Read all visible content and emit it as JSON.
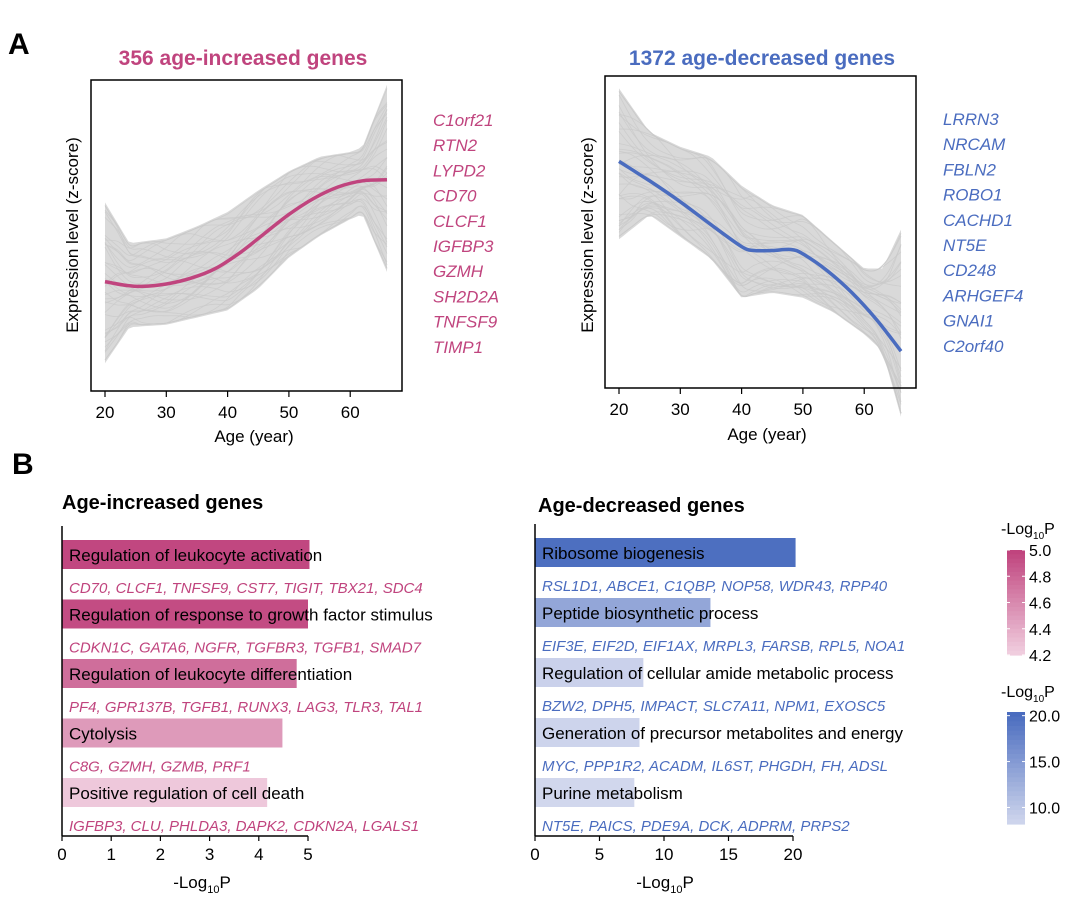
{
  "colors": {
    "increased": "#C0447E",
    "decreased": "#4A6CBF",
    "traces": "#D9D9D9",
    "axis": "#000000"
  },
  "panel_a_label": "A",
  "panel_b_label": "B",
  "chart_data": [
    {
      "id": "age-increased-trajectories",
      "type": "line",
      "title": "356 age-increased genes",
      "xlabel": "Age (year)",
      "ylabel": "Expression level (z-score)",
      "xlim": [
        20,
        66
      ],
      "xticks": [
        20,
        30,
        40,
        50,
        60
      ],
      "ylim": [
        -3,
        3
      ],
      "background_traces": "356 individual gene z-score trajectories (grey)",
      "series": [
        {
          "name": "mean trend",
          "x": [
            20,
            23,
            26,
            30,
            34,
            38,
            42,
            46,
            50,
            54,
            58,
            62,
            66
          ],
          "y": [
            -0.95,
            -1.02,
            -1.05,
            -1.0,
            -0.88,
            -0.68,
            -0.35,
            0.05,
            0.45,
            0.78,
            1.02,
            1.15,
            1.17
          ]
        }
      ],
      "band": {
        "x": [
          20,
          24,
          30,
          35,
          40,
          45,
          50,
          55,
          60,
          62,
          66
        ],
        "upper": [
          0.7,
          -0.15,
          -0.05,
          0.2,
          0.5,
          0.95,
          1.35,
          1.65,
          1.75,
          1.85,
          3.15
        ],
        "lower": [
          -2.65,
          -1.9,
          -1.85,
          -1.7,
          -1.55,
          -1.1,
          -0.45,
          0.0,
          0.35,
          0.45,
          -0.75
        ]
      },
      "gene_labels": [
        "C1orf21",
        "RTN2",
        "LYPD2",
        "CD70",
        "CLCF1",
        "IGFBP3",
        "GZMH",
        "SH2D2A",
        "TNFSF9",
        "TIMP1"
      ]
    },
    {
      "id": "age-decreased-trajectories",
      "type": "line",
      "title": "1372 age-decreased genes",
      "xlabel": "Age (year)",
      "ylabel": "Expression level (z-score)",
      "xlim": [
        20,
        66
      ],
      "xticks": [
        20,
        30,
        40,
        50,
        60
      ],
      "ylim": [
        -3,
        3
      ],
      "background_traces": "1372 individual gene z-score trajectories (grey)",
      "series": [
        {
          "name": "mean trend",
          "x": [
            20,
            25,
            30,
            35,
            40,
            42,
            45,
            48,
            50,
            54,
            58,
            62,
            66
          ],
          "y": [
            1.45,
            1.05,
            0.62,
            0.15,
            -0.3,
            -0.38,
            -0.38,
            -0.36,
            -0.45,
            -0.8,
            -1.25,
            -1.8,
            -2.45
          ]
        }
      ],
      "band": {
        "x": [
          20,
          25,
          30,
          35,
          40,
          45,
          50,
          55,
          60,
          63,
          66
        ],
        "upper": [
          2.95,
          2.05,
          1.75,
          1.55,
          0.95,
          0.55,
          0.35,
          -0.2,
          -0.75,
          -0.75,
          0.05
        ],
        "lower": [
          -0.15,
          0.35,
          -0.1,
          -0.55,
          -1.35,
          -1.25,
          -1.35,
          -1.65,
          -2.1,
          -2.45,
          -3.8
        ]
      },
      "gene_labels": [
        "LRRN3",
        "NRCAM",
        "FBLN2",
        "ROBO1",
        "CACHD1",
        "NT5E",
        "CD248",
        "ARHGEF4",
        "GNAI1",
        "C2orf40"
      ]
    },
    {
      "id": "age-increased-enrichment",
      "type": "bar",
      "orientation": "horizontal",
      "title": "Age-increased genes",
      "xlabel": "-Log10P",
      "xlim": [
        0,
        5
      ],
      "xticks": [
        0,
        1,
        2,
        3,
        4,
        5
      ],
      "categories": [
        "Regulation of leukocyte activation",
        "Regulation of response to growth factor stimulus",
        "Regulation of leukocyte differentiation",
        "Cytolysis",
        "Positive regulation of cell death"
      ],
      "values": [
        5.03,
        5.0,
        4.77,
        4.48,
        4.17
      ],
      "genes": [
        "CD70, CLCF1, TNFSF9, CST7, TIGIT, TBX21, SDC4",
        "CDKN1C, GATA6, NGFR, TGFBR3, TGFB1, SMAD7",
        "PF4, GPR137B, TGFB1, RUNX3, LAG3, TLR3, TAL1",
        "C8G, GZMH, GZMB, PRF1",
        "IGFBP3, CLU, PHLDA3, DAPK2, CDKN2A, LGALS1"
      ],
      "color_scale": {
        "title": "-Log10P",
        "min": 4.1,
        "max": 5.05,
        "ticks": [
          "5.0",
          "4.8",
          "4.6",
          "4.4",
          "4.2"
        ],
        "low": "#F2D3E2",
        "high": "#C0447E"
      }
    },
    {
      "id": "age-decreased-enrichment",
      "type": "bar",
      "orientation": "horizontal",
      "title": "Age-decreased genes",
      "xlabel": "-Log10P",
      "xlim": [
        0,
        20
      ],
      "xticks": [
        0,
        5,
        10,
        15,
        20
      ],
      "categories": [
        "Ribosome biogenesis",
        "Peptide biosynthetic process",
        "Regulation of cellular amide metabolic process",
        "Generation of precursor metabolites and energy",
        "Purine metabolism"
      ],
      "values": [
        20.2,
        13.6,
        8.4,
        8.1,
        7.7
      ],
      "genes": [
        "RSL1D1, ABCE1, C1QBP, NOP58, WDR43, RPP40",
        "EIF3E, EIF2D, EIF1AX, MRPL3, FARSB, RPL5, NOA1",
        "BZW2, DPH5, IMPACT, SLC7A11, NPM1, EXOSC5",
        "MYC, PPP1R2, ACADM, IL6ST, PHGDH, FH, ADSL",
        "NT5E, PAICS, PDE9A, DCK, ADPRM, PRPS2"
      ],
      "color_scale": {
        "title": "-Log10P",
        "min": 7.5,
        "max": 20.5,
        "ticks": [
          "20.0",
          "15.0",
          "10.0"
        ],
        "low": "#D3D9EE",
        "high": "#4A6CBF"
      }
    }
  ],
  "legend": {
    "title_prefix": "-Log",
    "title_sub": "10",
    "title_suffix": "P",
    "placement": "right"
  },
  "axis_title_b": {
    "prefix": "-Log",
    "sub": "10",
    "suffix": "P"
  }
}
